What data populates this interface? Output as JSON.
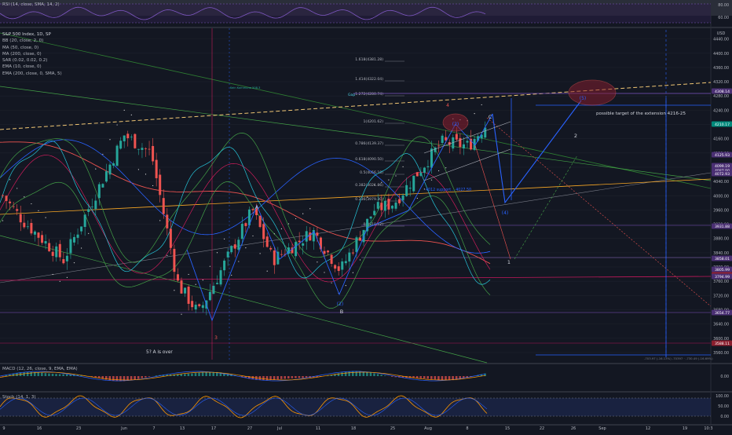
{
  "colors": {
    "background": "#131722",
    "pane_separator": "#2a2e39",
    "axis_text": "#b2b5be",
    "up_candle": "#26a69a",
    "down_candle": "#ef5350",
    "wave_blue": "#2962ff",
    "fib_line": "#787b86",
    "dashed_trend": "#f0c674",
    "rsi_purple": "#7e57c2",
    "macd_line": "#2962ff",
    "stoch_line": "#ff9800",
    "label_box_purple": "#4a2f73",
    "label_box_red": "#8b1e2e"
  },
  "panes": {
    "rsi": {
      "legend": "RSI (14, close, SMA, 14, 2)",
      "ticks": [
        "80.00",
        "60.00"
      ]
    },
    "main": {
      "legend": [
        "S&P 500 Index, 1D, SP",
        "BB (20, close, 2, 0)",
        "MA (50, close, 0)",
        "MA (200, close, 0)",
        "SAR (0.02, 0.02, 0.2)",
        "EMA (10, close, 0)",
        "EMA (200, close, 0, SMA, 5)"
      ],
      "currency": "USD",
      "y_ticks": [
        "4440.00",
        "4400.00",
        "4360.00",
        "4320.00",
        "4280.00",
        "4240.00",
        "4200.00",
        "4160.00",
        "4120.00",
        "4080.00",
        "4040.00",
        "4000.00",
        "3960.00",
        "3920.00",
        "3880.00",
        "3840.00",
        "3800.00",
        "3760.00",
        "3720.00",
        "3680.00",
        "3640.00",
        "3600.00",
        "3560.00"
      ],
      "price_badges": [
        {
          "text": "4308.14",
          "kind": "purple"
        },
        {
          "text": "4210.17",
          "kind": "teal"
        },
        {
          "text": "4125.93",
          "kind": "purple"
        },
        {
          "text": "4099.19",
          "kind": "purple"
        },
        {
          "text": "4087.90",
          "kind": "purple"
        },
        {
          "text": "4072.93",
          "kind": "purple"
        },
        {
          "text": "3931.88",
          "kind": "purple"
        },
        {
          "text": "3858.01",
          "kind": "purple"
        },
        {
          "text": "3805.99",
          "kind": "purple"
        },
        {
          "text": "3796.14",
          "kind": "red"
        },
        {
          "text": "3794.99",
          "kind": "purple"
        },
        {
          "text": "3654.77",
          "kind": "purple"
        },
        {
          "text": "3588.11",
          "kind": "red"
        }
      ],
      "fib_levels": [
        {
          "label": "1.618(4381.28)"
        },
        {
          "label": "1.414(4322.04)"
        },
        {
          "label": "1.272(4280.74)"
        },
        {
          "label": "1(4201.62)"
        },
        {
          "label": "0.786(4139.37)"
        },
        {
          "label": "0.618(4090.50)"
        },
        {
          "label": "0.5(4056.18)"
        },
        {
          "label": "0.382(4021.86)"
        },
        {
          "label": "0.236(3979.30)"
        },
        {
          "label": "0(3910.72)"
        }
      ],
      "annotations": {
        "gap": "Gap",
        "tiny_text_left": "Kein Kommune 508.3",
        "support_label": "4012 support... 4027.50",
        "target_text": "possible target of the extension 4216-25",
        "a_is_over": "5? A is over",
        "wave_labels": {
          "A": "A",
          "B": "B",
          "C": "C",
          "w2_paren": "(2)",
          "w2_paren_top": "(2)",
          "w4": "(4)",
          "w5": "(5)",
          "one": "1",
          "two": "2",
          "three": "3",
          "four_red": "4"
        },
        "measure_text": "-703.97 (-16.13%) -70397 · -730.49 (-16.69%)"
      }
    },
    "macd": {
      "legend": "MACD (12, 26, close, 9, EMA, EMA)",
      "ticks": [
        "0.00"
      ]
    },
    "stoch": {
      "legend": "Stoch (14, 1, 3)",
      "ticks": [
        "100.00",
        "50.00",
        "0.00"
      ]
    }
  },
  "x_axis": {
    "labels": [
      "9",
      "16",
      "23",
      "Jun",
      "7",
      "13",
      "17",
      "27",
      "Jul",
      "11",
      "18",
      "25",
      "Aug",
      "8",
      "15",
      "22",
      "26",
      "Sep",
      "12",
      "19",
      "10:3"
    ]
  },
  "chart_data": {
    "type": "candlestick",
    "title": "S&P 500 Index, 1D, SP",
    "ylim": [
      3540,
      4470
    ],
    "x": [
      "May 9",
      "May 16",
      "May 23",
      "Jun 1",
      "Jun 7",
      "Jun 13",
      "Jun 17",
      "Jun 27",
      "Jul 1",
      "Jul 11",
      "Jul 18",
      "Jul 25",
      "Aug 1",
      "Aug 8",
      "Aug 15"
    ],
    "swing_points": [
      {
        "date": "May 9",
        "close": 4000
      },
      {
        "date": "May 12",
        "close": 3930
      },
      {
        "date": "May 20",
        "close": 3820
      },
      {
        "date": "Jun 2",
        "close": 4170
      },
      {
        "date": "Jun 8",
        "close": 4120
      },
      {
        "date": "Jun 13",
        "close": 3750
      },
      {
        "date": "Jun 17",
        "close": 3670
      },
      {
        "date": "Jun 27",
        "close": 3960
      },
      {
        "date": "Jul 1",
        "close": 3820
      },
      {
        "date": "Jul 8",
        "close": 3900
      },
      {
        "date": "Jul 14",
        "close": 3790
      },
      {
        "date": "Jul 20",
        "close": 3960
      },
      {
        "date": "Jul 25",
        "close": 3980
      },
      {
        "date": "Aug 3",
        "close": 4150
      },
      {
        "date": "Aug 8",
        "close": 4140
      },
      {
        "date": "Aug 12",
        "close": 4210
      }
    ],
    "last_price": 4210.17
  }
}
